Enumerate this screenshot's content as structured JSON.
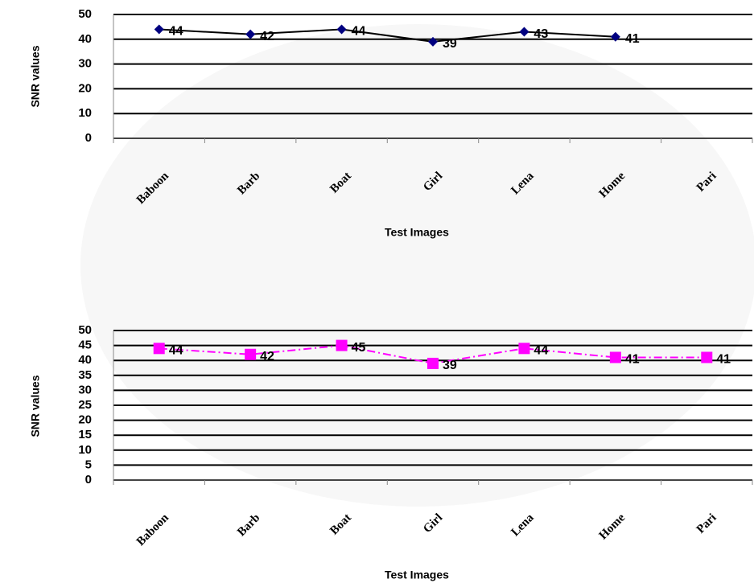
{
  "chart_data": [
    {
      "type": "line",
      "x_label": "Test Images",
      "y_label": "SNR values",
      "categories": [
        "Baboon",
        "Barb",
        "Boat",
        "Girl",
        "Lena",
        "Home",
        "Pari"
      ],
      "values": [
        44,
        42,
        44,
        39,
        43,
        41,
        null
      ],
      "color": "#000080",
      "line_color": "#000000",
      "marker": "diamond",
      "line_style": "solid",
      "ylim": [
        0,
        50
      ],
      "yticks": [
        0,
        10,
        20,
        30,
        40,
        50
      ],
      "grid": true
    },
    {
      "type": "line",
      "x_label": "Test Images",
      "y_label": "SNR values",
      "categories": [
        "Baboon",
        "Barb",
        "Boat",
        "Girl",
        "Lena",
        "Home",
        "Pari"
      ],
      "values": [
        44,
        42,
        45,
        39,
        44,
        41,
        41
      ],
      "color": "#ff00ff",
      "line_color": "#ff00ff",
      "marker": "square",
      "line_style": "dashdot",
      "ylim": [
        0,
        50
      ],
      "yticks": [
        0,
        5,
        10,
        15,
        20,
        25,
        30,
        35,
        40,
        45,
        50
      ],
      "grid": true
    }
  ]
}
